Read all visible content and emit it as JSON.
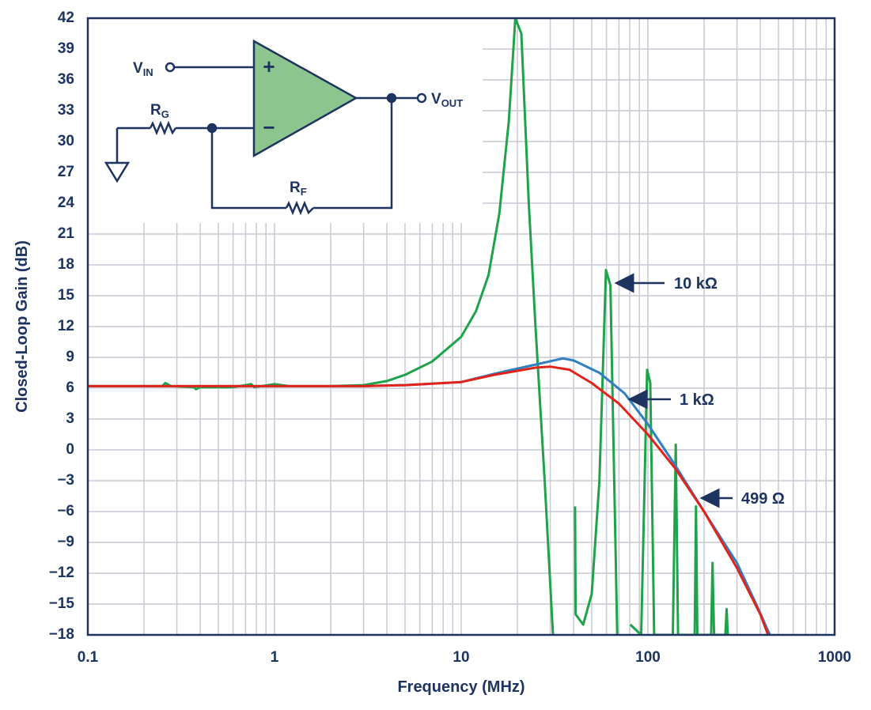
{
  "chart_data": {
    "type": "line",
    "xlabel": "Frequency (MHz)",
    "ylabel": "Closed-Loop Gain (dB)",
    "xscale": "log",
    "grid": true,
    "xlim": [
      0.1,
      1000
    ],
    "xticks": [
      0.1,
      1,
      10,
      100,
      1000
    ],
    "xminorticks": [
      0.2,
      0.3,
      0.4,
      0.5,
      0.6,
      0.7,
      0.8,
      0.9,
      2,
      3,
      4,
      5,
      6,
      7,
      8,
      9,
      20,
      30,
      40,
      50,
      60,
      70,
      80,
      90,
      200,
      300,
      400,
      500,
      600,
      700,
      800,
      900
    ],
    "ylim": [
      -18,
      42
    ],
    "yticks": [
      {
        "value": -18,
        "label": "−18"
      },
      {
        "value": -15,
        "label": "−15"
      },
      {
        "value": -12,
        "label": "−12"
      },
      {
        "value": -9,
        "label": "−9"
      },
      {
        "value": -6,
        "label": "−6"
      },
      {
        "value": -3,
        "label": "−3"
      },
      0,
      3,
      6,
      9,
      12,
      15,
      18,
      21,
      24,
      27,
      30,
      33,
      36,
      39,
      42
    ],
    "series": [
      {
        "name": "10 kΩ",
        "color": "#1fa34a",
        "x": [
          0.1,
          0.25,
          0.26,
          0.28,
          0.37,
          0.38,
          0.4,
          0.6,
          0.75,
          0.78,
          1,
          1.2,
          2,
          3,
          4,
          5,
          7,
          10,
          12,
          14,
          16,
          18,
          19.5,
          21,
          23,
          25,
          28,
          31,
          40.5,
          40.7,
          41,
          45,
          50,
          55,
          59.6,
          63,
          68.5,
          79.5,
          80.5,
          92,
          99,
          103,
          108,
          136,
          141,
          145,
          178,
          181,
          184,
          218,
          222,
          226,
          260,
          264,
          268
        ],
        "values": [
          6.2,
          6.2,
          6.5,
          6.2,
          6.1,
          5.9,
          6.1,
          6.1,
          6.4,
          6.1,
          6.4,
          6.2,
          6.2,
          6.3,
          6.7,
          7.3,
          8.6,
          11,
          13.5,
          17,
          23,
          32,
          42,
          40.5,
          24,
          12,
          -3,
          -18,
          null,
          -5.5,
          -16,
          -17,
          -14,
          -3,
          17.5,
          16,
          -18,
          null,
          -17,
          -18,
          7.8,
          6.5,
          -18,
          -18,
          0.5,
          -18,
          -18,
          -5.5,
          -18,
          -18,
          -11,
          -18,
          -18,
          -15.5,
          -18
        ]
      },
      {
        "name": "1 kΩ",
        "color": "#2f7fc1",
        "x": [
          0.1,
          1,
          3,
          5,
          10,
          15,
          25,
          35,
          40,
          55,
          75,
          100,
          140,
          200,
          300,
          380,
          450
        ],
        "values": [
          6.2,
          6.2,
          6.2,
          6.3,
          6.6,
          7.4,
          8.3,
          8.9,
          8.7,
          7.5,
          5.5,
          2.5,
          -1.5,
          -6,
          -11,
          -15,
          -18
        ]
      },
      {
        "name": "499 Ω",
        "color": "#e2231a",
        "x": [
          0.1,
          1,
          3,
          5,
          10,
          15,
          25,
          30,
          38,
          50,
          70,
          100,
          140,
          200,
          300,
          400,
          440
        ],
        "values": [
          6.2,
          6.2,
          6.2,
          6.3,
          6.6,
          7.3,
          8,
          8.1,
          7.8,
          6.5,
          4.5,
          1.5,
          -1.8,
          -6,
          -11.5,
          -16,
          -18
        ]
      }
    ],
    "schematic_labels": {
      "vin": {
        "text": "V",
        "sub": "IN"
      },
      "vout": {
        "text": "V",
        "sub": "OUT"
      },
      "rg": {
        "text": "R",
        "sub": "G"
      },
      "rf": {
        "text": "R",
        "sub": "F"
      },
      "plus": "+",
      "minus": "−"
    }
  }
}
